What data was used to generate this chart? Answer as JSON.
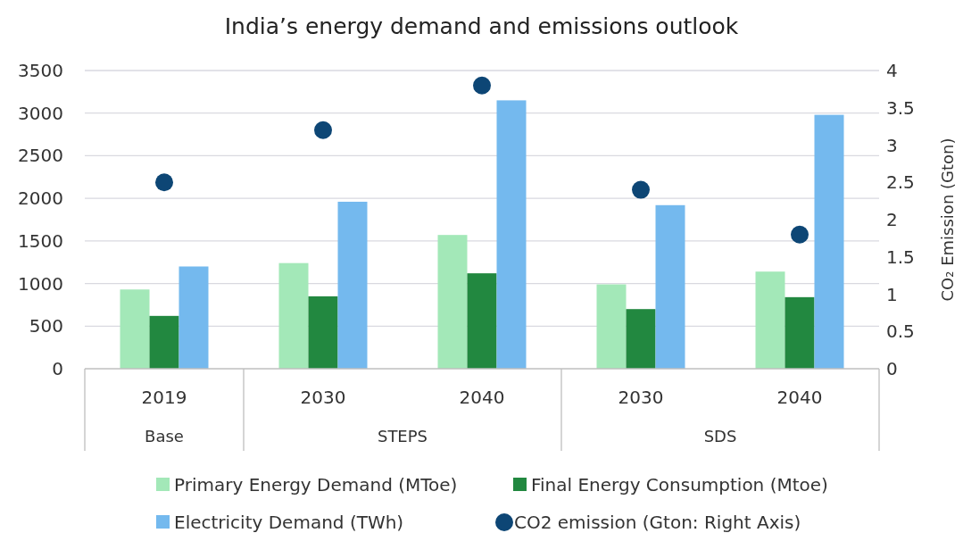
{
  "chart_data": {
    "type": "bar",
    "title": "India’s energy demand and emissions outlook",
    "y2label": "CO₂ Emission (Gton)",
    "categories": [
      "2019",
      "2030",
      "2040",
      "2030",
      "2040"
    ],
    "annotations": [
      "Base",
      "STEPS",
      "SDS"
    ],
    "series": [
      {
        "name": "Primary Energy Demand (MToe)",
        "color": "#a3e8b8",
        "values": [
          930,
          1240,
          1570,
          990,
          1140
        ]
      },
      {
        "name": "Final Energy Consumption (Mtoe)",
        "color": "#228840",
        "values": [
          620,
          850,
          1120,
          700,
          840
        ]
      },
      {
        "name": "Electricity Demand (TWh)",
        "color": "#74b9ee",
        "values": [
          1200,
          1960,
          3150,
          1920,
          2980
        ]
      },
      {
        "name": "CO2 emission (Gton: Right Axis)",
        "color": "#0d4675",
        "type": "scatter",
        "axis": "y2",
        "marker": "circle",
        "values": [
          2.5,
          3.2,
          3.8,
          2.4,
          1.8
        ]
      }
    ],
    "ylim": [
      0,
      3500
    ],
    "yticks": [
      0,
      500,
      1000,
      1500,
      2000,
      2500,
      3000,
      3500
    ],
    "y2lim": [
      0,
      4
    ],
    "y2ticks": [
      0,
      0.5,
      1,
      1.5,
      2,
      2.5,
      3,
      3.5,
      4
    ],
    "grid": "y",
    "legend": "bottom"
  }
}
